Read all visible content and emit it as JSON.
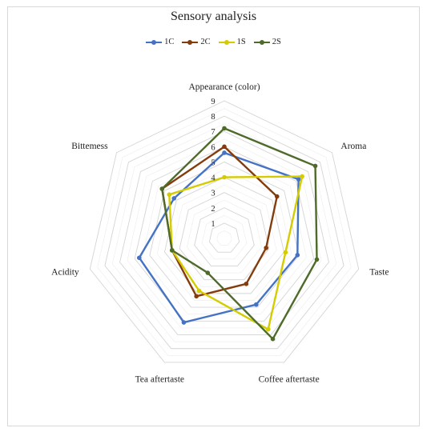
{
  "chart_data": {
    "type": "radar",
    "title": "Sensory analysis",
    "axes": [
      "Appearance (color)",
      "Aroma",
      "Taste",
      "Coffee aftertaste",
      "Tea aftertaste",
      "Acidity",
      "Bittemess"
    ],
    "scale_labels": [
      "1",
      "2",
      "3",
      "4",
      "5",
      "6",
      "7",
      "8",
      "9"
    ],
    "rmax": 9,
    "grid": true,
    "legend_position": "top",
    "series": [
      {
        "name": "1C",
        "color": "#4472C4",
        "values": [
          5.6,
          6.2,
          4.9,
          4.8,
          6.1,
          5.7,
          4.2
        ]
      },
      {
        "name": "2C",
        "color": "#843C0C",
        "values": [
          6.0,
          4.4,
          2.8,
          3.3,
          4.2,
          3.5,
          5.2
        ]
      },
      {
        "name": "1S",
        "color": "#D4CC00",
        "values": [
          4.0,
          6.5,
          4.1,
          6.6,
          3.8,
          3.5,
          4.6
        ]
      },
      {
        "name": "2S",
        "color": "#4E6B2A",
        "values": [
          7.2,
          7.6,
          6.2,
          7.3,
          2.5,
          3.5,
          5.2
        ]
      }
    ]
  }
}
